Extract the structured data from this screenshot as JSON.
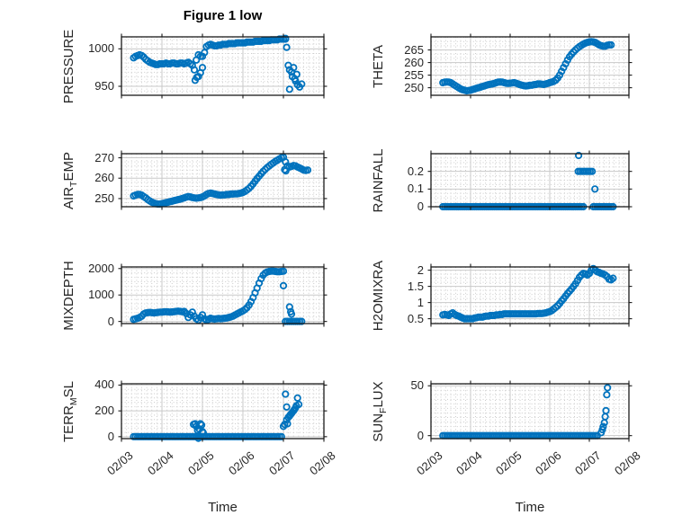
{
  "figure": {
    "title": "Figure 1 low",
    "xlabel": "Time",
    "marker_color": "#0072bd",
    "axis_color": "#1a1a1a",
    "grid_color": "#c9c9c9",
    "minor_grid_color": "#cccccc",
    "background": "#ffffff",
    "xticks": [
      {
        "value": 3,
        "label": "02/03"
      },
      {
        "value": 4,
        "label": "02/04"
      },
      {
        "value": 5,
        "label": "02/05"
      },
      {
        "value": 6,
        "label": "02/06"
      },
      {
        "value": 7,
        "label": "02/07"
      },
      {
        "value": 8,
        "label": "02/08"
      }
    ]
  },
  "chart_data": [
    {
      "id": "pressure",
      "type": "scatter",
      "row": 0,
      "col": 0,
      "ylabel": "PRESSURE",
      "ylabel_parts": [
        {
          "text": "PRESSURE",
          "sub": false
        }
      ],
      "xlim": [
        3,
        8
      ],
      "ylim": [
        938,
        1016
      ],
      "show_x_tick_labels": false,
      "yticks": [
        {
          "value": 950,
          "label": "950"
        },
        {
          "value": 1000,
          "label": "1000"
        }
      ],
      "series": [
        {
          "t0": 3.3,
          "dt": 0.05,
          "values": [
            988,
            990,
            991,
            992,
            991,
            989,
            986,
            984,
            982,
            981,
            980,
            979,
            979,
            980,
            980,
            980,
            981,
            980,
            980,
            981,
            981,
            980,
            980,
            981,
            981,
            980,
            981,
            982,
            980,
            978,
            972,
            985,
            963,
            990,
            975,
            995,
            1003,
            1005,
            1006,
            1005,
            1004,
            1004,
            1005,
            1005,
            1006,
            1006,
            1006,
            1007,
            1007,
            1007,
            1007,
            1008,
            1008,
            1008,
            1008,
            1008,
            1009,
            1009,
            1009,
            1009,
            1010,
            1010,
            1010,
            1010,
            1011,
            1011,
            1011,
            1011,
            1012,
            1012,
            1012,
            1012,
            1013,
            1013,
            1013,
            1013
          ]
        }
      ],
      "extra_points": [
        [
          4.82,
          958
        ],
        [
          4.86,
          962
        ],
        [
          4.9,
          992
        ],
        [
          4.95,
          968
        ],
        [
          5.0,
          990
        ],
        [
          7.05,
          1014
        ],
        [
          7.08,
          1002
        ],
        [
          7.12,
          978
        ],
        [
          7.15,
          972
        ],
        [
          7.15,
          946
        ],
        [
          7.2,
          969
        ],
        [
          7.22,
          963
        ],
        [
          7.25,
          975
        ],
        [
          7.28,
          960
        ],
        [
          7.3,
          957
        ],
        [
          7.33,
          966
        ],
        [
          7.35,
          952
        ],
        [
          7.4,
          949
        ],
        [
          7.45,
          953
        ]
      ]
    },
    {
      "id": "theta",
      "type": "scatter",
      "row": 0,
      "col": 1,
      "ylabel": "THETA",
      "ylabel_parts": [
        {
          "text": "THETA",
          "sub": false
        }
      ],
      "xlim": [
        3,
        8
      ],
      "ylim": [
        247,
        270.2
      ],
      "show_x_tick_labels": false,
      "yticks": [
        {
          "value": 250,
          "label": "250"
        },
        {
          "value": 255,
          "label": "255"
        },
        {
          "value": 260,
          "label": "260"
        },
        {
          "value": 265,
          "label": "265"
        }
      ],
      "series": [
        {
          "t0": 3.3,
          "dt": 0.05,
          "values": [
            252,
            252.2,
            252.3,
            252.2,
            252,
            251.5,
            251,
            250.5,
            250,
            249.5,
            249.2,
            249,
            248.8,
            248.9,
            249,
            249.3,
            249.5,
            249.8,
            250,
            250.2,
            250.5,
            250.7,
            251,
            251.2,
            251.4,
            251.5,
            251.7,
            252,
            252.2,
            252.3,
            252.2,
            252,
            251.8,
            251.7,
            251.8,
            251.9,
            252,
            251.8,
            251.5,
            251.2,
            251,
            250.8,
            250.7,
            250.8,
            251,
            251,
            251.2,
            251.3,
            251.5,
            251.5,
            251.4,
            251.3,
            251.5,
            251.7,
            252,
            252.2,
            252.5,
            253,
            253.8,
            255,
            256.5,
            258,
            259.5,
            261,
            262.3,
            263.3,
            264.2,
            265,
            265.7,
            266.3,
            266.8,
            267.3,
            267.7,
            268,
            268.2,
            268.3,
            268.2,
            268,
            267.5,
            267,
            266.7,
            266.5,
            266.5,
            266.8,
            267,
            267
          ]
        }
      ],
      "extra_points": []
    },
    {
      "id": "airtemp",
      "type": "scatter",
      "row": 1,
      "col": 0,
      "ylabel": "AIR_TEMP",
      "ylabel_parts": [
        {
          "text": "AIR",
          "sub": false
        },
        {
          "text": "T",
          "sub": true
        },
        {
          "text": "EMP",
          "sub": false
        }
      ],
      "xlim": [
        3,
        8
      ],
      "ylim": [
        246,
        272
      ],
      "show_x_tick_labels": false,
      "yticks": [
        {
          "value": 250,
          "label": "250"
        },
        {
          "value": 260,
          "label": "260"
        },
        {
          "value": 270,
          "label": "270"
        }
      ],
      "series": [
        {
          "t0": 3.3,
          "dt": 0.05,
          "values": [
            251.3,
            251.7,
            252,
            252,
            251.7,
            251,
            250.3,
            249.5,
            248.8,
            248.2,
            247.8,
            247.5,
            247.3,
            247.3,
            247.5,
            247.7,
            248,
            248.2,
            248.5,
            248.7,
            249,
            249.2,
            249.5,
            249.7,
            250,
            250.3,
            250.7,
            251,
            250.8,
            250.5,
            250.3,
            250.2,
            250.3,
            250.5,
            250.8,
            251.3,
            252,
            252.5,
            252.7,
            252.5,
            252.2,
            252,
            251.8,
            251.7,
            251.8,
            251.8,
            252,
            252,
            252.2,
            252.2,
            252.3,
            252.3,
            252.5,
            252.7,
            253,
            253.5,
            254.2,
            255,
            256,
            257.2,
            258.5,
            259.8,
            261,
            262.2,
            263.3,
            264.3,
            265.2,
            266,
            266.8,
            267.5,
            268.2,
            268.8,
            269.4,
            270,
            270.3,
            268,
            266,
            265.5,
            265.8,
            266.2,
            266,
            265.5,
            265,
            264.5,
            264,
            263.8,
            264
          ]
        }
      ],
      "extra_points": [
        [
          7.03,
          264.2
        ],
        [
          7.06,
          263.6
        ]
      ]
    },
    {
      "id": "rainfall",
      "type": "scatter",
      "row": 1,
      "col": 1,
      "ylabel": "RAINFALL",
      "ylabel_parts": [
        {
          "text": "RAINFALL",
          "sub": false
        }
      ],
      "xlim": [
        3,
        8
      ],
      "ylim": [
        0,
        0.3
      ],
      "show_x_tick_labels": false,
      "yticks": [
        {
          "value": 0,
          "label": "0"
        },
        {
          "value": 0.1,
          "label": "0.1"
        },
        {
          "value": 0.2,
          "label": "0.2"
        }
      ],
      "series": [
        {
          "t0": 3.3,
          "dt": 0.05,
          "n": 72,
          "const": 0
        },
        {
          "t0": 7.1,
          "dt": 0.05,
          "n": 11,
          "const": 0
        }
      ],
      "extra_points": [
        [
          6.73,
          0.29
        ],
        [
          6.72,
          0.2
        ],
        [
          6.77,
          0.2
        ],
        [
          6.82,
          0.2
        ],
        [
          6.87,
          0.2
        ],
        [
          6.92,
          0.2
        ],
        [
          6.97,
          0.2
        ],
        [
          7.02,
          0.2
        ],
        [
          7.07,
          0.2
        ],
        [
          7.14,
          0.1
        ]
      ]
    },
    {
      "id": "mixdepth",
      "type": "scatter",
      "row": 2,
      "col": 0,
      "ylabel": "MIXDEPTH",
      "ylabel_parts": [
        {
          "text": "MIXDEPTH",
          "sub": false
        }
      ],
      "xlim": [
        3,
        8
      ],
      "ylim": [
        -80,
        2060
      ],
      "show_x_tick_labels": false,
      "yticks": [
        {
          "value": 0,
          "label": "0"
        },
        {
          "value": 1000,
          "label": "1000"
        },
        {
          "value": 2000,
          "label": "2000"
        }
      ],
      "series": [
        {
          "t0": 3.3,
          "dt": 0.05,
          "values": [
            80,
            100,
            120,
            150,
            200,
            280,
            320,
            330,
            340,
            330,
            320,
            330,
            340,
            350,
            350,
            360,
            370,
            360,
            350,
            360,
            370,
            380,
            390,
            380,
            370,
            380,
            300,
            150,
            250,
            350,
            200,
            100,
            50,
            150,
            250,
            100,
            50,
            80,
            120,
            100,
            90,
            100,
            110,
            100,
            110,
            120,
            130,
            150,
            170,
            200,
            240,
            280,
            320,
            360,
            400,
            450,
            520,
            620,
            750,
            900,
            1080,
            1260,
            1450,
            1620,
            1750,
            1830,
            1870,
            1890,
            1900,
            1900,
            1890,
            1880,
            1880,
            1890,
            1900
          ]
        },
        {
          "t0": 7.05,
          "dt": 0.05,
          "n": 9,
          "const": 0
        }
      ],
      "extra_points": [
        [
          7.0,
          1350
        ],
        [
          7.15,
          550
        ],
        [
          7.18,
          370
        ],
        [
          7.2,
          280
        ]
      ]
    },
    {
      "id": "h2omixra",
      "type": "scatter",
      "row": 2,
      "col": 1,
      "ylabel": "H2OMIXRA",
      "ylabel_parts": [
        {
          "text": "H2OMIXRA",
          "sub": false
        }
      ],
      "xlim": [
        3,
        8
      ],
      "ylim": [
        0.35,
        2.1
      ],
      "show_x_tick_labels": false,
      "yticks": [
        {
          "value": 0.5,
          "label": "0.5"
        },
        {
          "value": 1,
          "label": "1"
        },
        {
          "value": 1.5,
          "label": "1.5"
        },
        {
          "value": 2,
          "label": "2"
        }
      ],
      "series": [
        {
          "t0": 3.3,
          "dt": 0.05,
          "values": [
            0.62,
            0.63,
            0.62,
            0.6,
            0.65,
            0.68,
            0.63,
            0.6,
            0.58,
            0.55,
            0.52,
            0.5,
            0.5,
            0.5,
            0.5,
            0.5,
            0.52,
            0.53,
            0.55,
            0.55,
            0.55,
            0.57,
            0.58,
            0.58,
            0.6,
            0.6,
            0.6,
            0.62,
            0.62,
            0.63,
            0.63,
            0.65,
            0.65,
            0.65,
            0.65,
            0.65,
            0.65,
            0.65,
            0.65,
            0.65,
            0.65,
            0.65,
            0.65,
            0.65,
            0.65,
            0.65,
            0.65,
            0.65,
            0.66,
            0.66,
            0.66,
            0.67,
            0.68,
            0.7,
            0.72,
            0.75,
            0.8,
            0.85,
            0.9,
            0.97,
            1.05,
            1.12,
            1.2,
            1.28,
            1.35,
            1.42,
            1.5,
            1.58,
            1.68,
            1.78,
            1.85,
            1.9,
            1.88,
            1.85,
            1.9,
            2.0,
            2.05,
            2.0,
            1.95,
            1.93,
            1.9,
            1.88,
            1.85,
            1.8,
            1.72,
            1.7,
            1.75
          ]
        }
      ],
      "extra_points": []
    },
    {
      "id": "terrmsl",
      "type": "scatter",
      "row": 3,
      "col": 0,
      "ylabel": "TERR_MSL",
      "ylabel_parts": [
        {
          "text": "TERR",
          "sub": false
        },
        {
          "text": "M",
          "sub": true
        },
        {
          "text": "SL",
          "sub": false
        }
      ],
      "xlim": [
        3,
        8
      ],
      "ylim": [
        -15,
        410
      ],
      "show_x_tick_labels": true,
      "yticks": [
        {
          "value": 0,
          "label": "0"
        },
        {
          "value": 200,
          "label": "200"
        },
        {
          "value": 400,
          "label": "400"
        }
      ],
      "series": [
        {
          "t0": 3.3,
          "dt": 0.05,
          "n": 74,
          "const": 0
        }
      ],
      "extra_points": [
        [
          4.78,
          95
        ],
        [
          4.82,
          100
        ],
        [
          4.85,
          80
        ],
        [
          4.88,
          50
        ],
        [
          4.9,
          -12
        ],
        [
          4.92,
          60
        ],
        [
          4.95,
          100
        ],
        [
          4.98,
          90
        ],
        [
          5.0,
          40
        ],
        [
          5.02,
          30
        ],
        [
          7.0,
          80
        ],
        [
          7.03,
          95
        ],
        [
          7.05,
          330
        ],
        [
          7.08,
          230
        ],
        [
          7.08,
          130
        ],
        [
          7.1,
          100
        ],
        [
          7.12,
          150
        ],
        [
          7.15,
          160
        ],
        [
          7.17,
          170
        ],
        [
          7.2,
          180
        ],
        [
          7.22,
          190
        ],
        [
          7.25,
          200
        ],
        [
          7.27,
          210
        ],
        [
          7.3,
          225
        ],
        [
          7.32,
          240
        ],
        [
          7.35,
          300
        ],
        [
          7.38,
          250
        ]
      ]
    },
    {
      "id": "sunflux",
      "type": "scatter",
      "row": 3,
      "col": 1,
      "ylabel": "SUN_FLUX",
      "ylabel_parts": [
        {
          "text": "SUN",
          "sub": false
        },
        {
          "text": "F",
          "sub": true
        },
        {
          "text": "LUX",
          "sub": false
        }
      ],
      "xlim": [
        3,
        8
      ],
      "ylim": [
        -3,
        52
      ],
      "show_x_tick_labels": true,
      "yticks": [
        {
          "value": 0,
          "label": "0"
        },
        {
          "value": 50,
          "label": "50"
        }
      ],
      "series": [
        {
          "t0": 3.3,
          "dt": 0.05,
          "n": 79,
          "const": 0
        }
      ],
      "extra_points": [
        [
          7.3,
          3
        ],
        [
          7.33,
          6
        ],
        [
          7.35,
          9
        ],
        [
          7.38,
          13
        ],
        [
          7.4,
          19
        ],
        [
          7.42,
          25
        ],
        [
          7.44,
          41
        ],
        [
          7.46,
          48
        ]
      ]
    }
  ]
}
